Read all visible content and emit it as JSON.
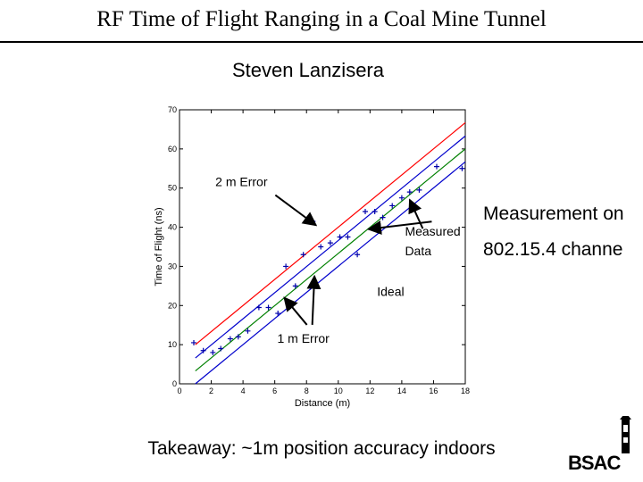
{
  "slide": {
    "title": "RF Time of Flight Ranging in a Coal Mine Tunnel",
    "author": "Steven Lanzisera",
    "note_line1": "Measurement on",
    "note_line2": "802.15.4 channe",
    "takeaway": "Takeaway: ~1m position accuracy indoors",
    "logo_text": "BSAC"
  },
  "colors": {
    "ideal": "#008000",
    "one_m_error": "#0000cc",
    "two_m_error": "#ff0000",
    "measured": "#0000aa"
  },
  "chart_data": {
    "type": "scatter",
    "title": "",
    "xlabel": "Distance (m)",
    "ylabel": "Time of Flight (ns)",
    "xlim": [
      0,
      18
    ],
    "ylim": [
      0,
      70
    ],
    "xticks": [
      0,
      2,
      4,
      6,
      8,
      10,
      12,
      14,
      16,
      18
    ],
    "yticks": [
      0,
      10,
      20,
      30,
      40,
      50,
      60,
      70
    ],
    "grid": false,
    "lines": [
      {
        "name": "Ideal",
        "color": "#008000",
        "x": [
          1,
          18
        ],
        "y": [
          3.3,
          60
        ]
      },
      {
        "name": "1 m Error",
        "color": "#0000cc",
        "x": [
          1,
          18
        ],
        "y": [
          6.6,
          63.3
        ]
      },
      {
        "name": "1 m Error",
        "color": "#0000cc",
        "x": [
          1,
          18
        ],
        "y": [
          0,
          56.7
        ]
      },
      {
        "name": "2 m Error",
        "color": "#ff0000",
        "x": [
          1,
          18
        ],
        "y": [
          10,
          66.7
        ]
      }
    ],
    "series": [
      {
        "name": "Measured Data",
        "marker": "+",
        "x": [
          0.9,
          1.5,
          2.1,
          2.6,
          3.2,
          3.7,
          4.3,
          5.0,
          5.6,
          6.2,
          6.7,
          7.3,
          7.8,
          8.4,
          8.9,
          9.5,
          10.1,
          10.6,
          11.2,
          11.7,
          12.3,
          12.8,
          13.4,
          14.0,
          14.5,
          15.1,
          16.2,
          17.8
        ],
        "y": [
          10.5,
          8.5,
          8.0,
          9.0,
          11.5,
          12.0,
          13.5,
          19.5,
          19.5,
          18.0,
          30.0,
          25.0,
          33.0,
          41.5,
          35.0,
          36.0,
          37.5,
          37.5,
          33.0,
          44.0,
          44.0,
          42.5,
          45.5,
          47.5,
          49.0,
          49.5,
          55.5,
          55.0
        ]
      }
    ],
    "annotations": [
      {
        "text": "2 m Error",
        "x": 3.9,
        "y": 50.5,
        "arrow_x": 8.6,
        "arrow_y": 40.5
      },
      {
        "text": "Measured",
        "x": 14.2,
        "y": 37.8,
        "arrow_x": 11.9,
        "arrow_y": 39.5
      },
      {
        "text": "Data",
        "x": 14.2,
        "y": 32.8,
        "arrow_x": 14.5,
        "arrow_y": 47.0
      },
      {
        "text": "Ideal",
        "x": 13.3,
        "y": 22.5,
        "arrow_x": 13.3,
        "arrow_y": 22.5
      },
      {
        "text": "1 m Error",
        "x": 7.8,
        "y": 10.5,
        "arrow_x": 6.6,
        "arrow_y": 22.0
      },
      {
        "text": "",
        "x": 7.8,
        "y": 10.5,
        "arrow_x": 8.5,
        "arrow_y": 27.5
      }
    ]
  }
}
